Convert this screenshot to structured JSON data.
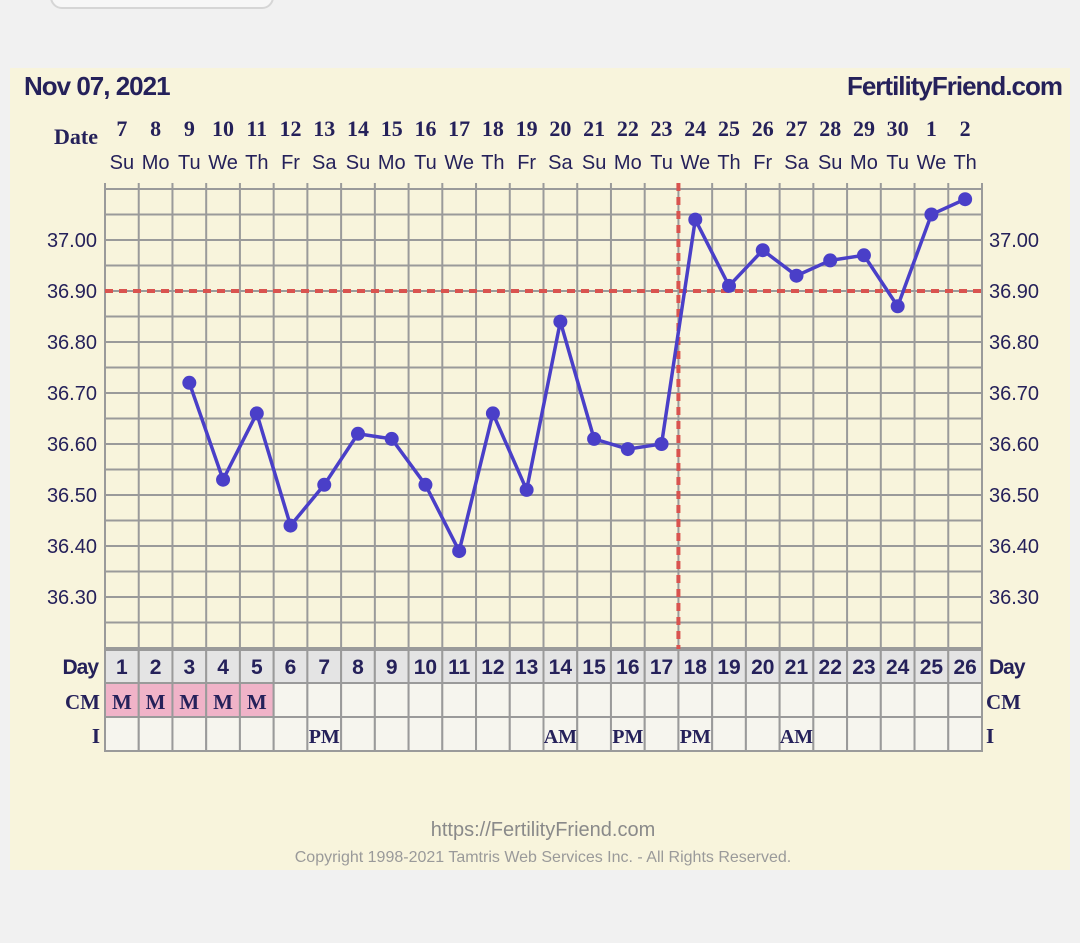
{
  "header": {
    "date": "Nov 07, 2021",
    "brand": "FertilityFriend.com"
  },
  "footer": {
    "url": "https://FertilityFriend.com",
    "copyright": "Copyright 1998-2021 Tamtris Web Services Inc. - All Rights Reserved."
  },
  "colors": {
    "line": "#4a3fc8",
    "coverline": "#d9534f",
    "grid": "#9a9a9a",
    "menstruation": "#f0b3c8",
    "text": "#25215a"
  },
  "chart_data": {
    "type": "line",
    "title": "Nov 07, 2021",
    "row_labels": {
      "date": "Date",
      "day": "Day",
      "cm": "CM",
      "intercourse": "I"
    },
    "dates": [
      "7",
      "8",
      "9",
      "10",
      "11",
      "12",
      "13",
      "14",
      "15",
      "16",
      "17",
      "18",
      "19",
      "20",
      "21",
      "22",
      "23",
      "24",
      "25",
      "26",
      "27",
      "28",
      "29",
      "30",
      "1",
      "2"
    ],
    "weekdays": [
      "Su",
      "Mo",
      "Tu",
      "We",
      "Th",
      "Fr",
      "Sa",
      "Su",
      "Mo",
      "Tu",
      "We",
      "Th",
      "Fr",
      "Sa",
      "Su",
      "Mo",
      "Tu",
      "We",
      "Th",
      "Fr",
      "Sa",
      "Su",
      "Mo",
      "Tu",
      "We",
      "Th"
    ],
    "cycle_days": [
      "1",
      "2",
      "3",
      "4",
      "5",
      "6",
      "7",
      "8",
      "9",
      "10",
      "11",
      "12",
      "13",
      "14",
      "15",
      "16",
      "17",
      "18",
      "19",
      "20",
      "21",
      "22",
      "23",
      "24",
      "25",
      "26"
    ],
    "temperatures": [
      null,
      null,
      36.72,
      36.53,
      36.66,
      36.44,
      36.52,
      36.62,
      36.61,
      36.52,
      36.39,
      36.66,
      36.51,
      36.84,
      36.61,
      36.59,
      36.6,
      37.04,
      36.91,
      36.98,
      36.93,
      36.96,
      36.97,
      36.87,
      37.05,
      37.08
    ],
    "cm": [
      "M",
      "M",
      "M",
      "M",
      "M",
      "",
      "",
      "",
      "",
      "",
      "",
      "",
      "",
      "",
      "",
      "",
      "",
      "",
      "",
      "",
      "",
      "",
      "",
      "",
      "",
      ""
    ],
    "intercourse": [
      "",
      "",
      "",
      "",
      "",
      "",
      "PM",
      "",
      "",
      "",
      "",
      "",
      "",
      "AM",
      "",
      "PM",
      "",
      "PM",
      "",
      "",
      "AM",
      "",
      "",
      "",
      "",
      ""
    ],
    "y_ticks": [
      "37.00",
      "36.90",
      "36.80",
      "36.70",
      "36.60",
      "36.50",
      "36.40",
      "36.30"
    ],
    "ylim": [
      36.2,
      37.11
    ],
    "coverline": 36.9,
    "ovulation_after_day": 17,
    "grid": true
  }
}
